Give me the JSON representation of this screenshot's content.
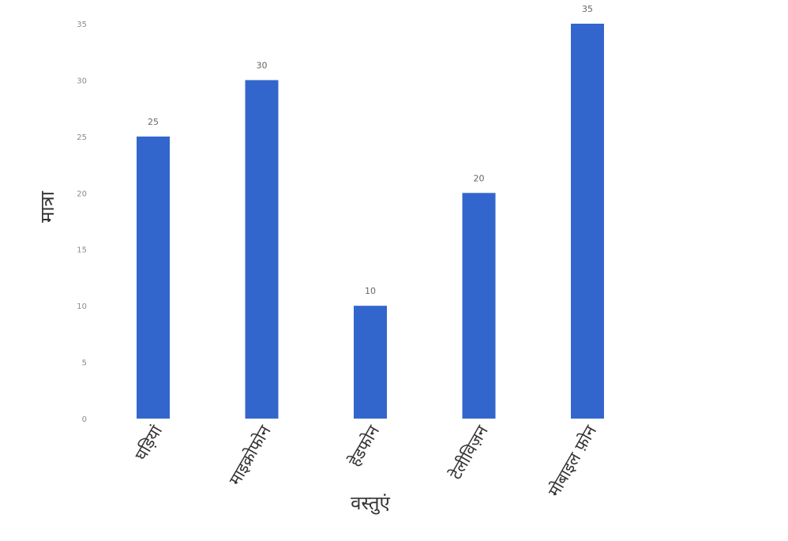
{
  "chart_data": {
    "type": "bar",
    "title": "",
    "xlabel": "वस्तुएं",
    "ylabel": "मात्रा",
    "categories": [
      "घड़ियां",
      "माइक्रोफोन",
      "हेडफोन",
      "टेलीविज़न",
      "मोबाइल फ़ोन"
    ],
    "values": [
      25,
      30,
      10,
      20,
      35
    ],
    "value_labels": [
      "25",
      "30",
      "10",
      "20",
      "35"
    ],
    "yticks": [
      0,
      5,
      10,
      15,
      20,
      25,
      30,
      35
    ],
    "ytick_labels": [
      "0",
      "5",
      "10",
      "15",
      "20",
      "25",
      "30",
      "35"
    ],
    "ylim": [
      0,
      35
    ],
    "grid": false,
    "legend": "none",
    "bar_color": "#3366cc"
  }
}
